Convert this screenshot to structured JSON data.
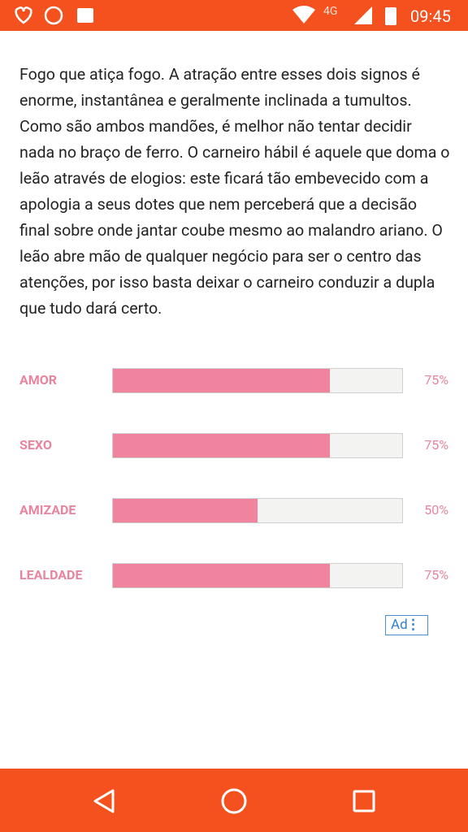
{
  "status_bar": {
    "network": "4G",
    "time": "09:45"
  },
  "article": {
    "paragraph": "Fogo que atiça fogo. A atração entre esses dois signos é enorme, instantânea e geralmente inclinada a tumultos. Como são ambos mandões, é melhor não tentar decidir nada no braço de ferro. O carneiro hábil é aquele que doma o leão através de elogios: este ficará tão embevecido com a apologia a seus dotes que nem perceberá que a decisão final sobre onde jantar coube mesmo ao malandro ariano. O leão abre mão de qualquer negócio para ser o centro das atenções, por isso basta deixar o carneiro conduzir a dupla que tudo dará certo."
  },
  "ratings": {
    "xlim": [
      0,
      100
    ],
    "color": "#f0849f",
    "items": [
      {
        "name": "AMOR",
        "value": 75,
        "value_label": "75%"
      },
      {
        "name": "SEXO",
        "value": 75,
        "value_label": "75%"
      },
      {
        "name": "AMIZADE",
        "value": 50,
        "value_label": "50%"
      },
      {
        "name": "LEALDADE",
        "value": 75,
        "value_label": "75%"
      }
    ]
  },
  "ad": {
    "label": "Ad"
  }
}
